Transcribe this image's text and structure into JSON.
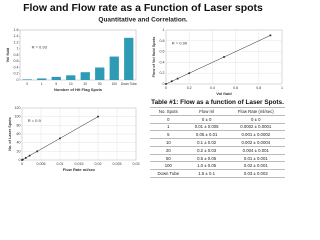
{
  "title": "Flow and Flow rate as a Function of Laser spots",
  "subtitle": "Quantitative and Correlation.",
  "chart_data": [
    {
      "type": "bar",
      "x_label": "Number of Hit Flag Spots",
      "y_label": "Vol fluid",
      "annotation": "R = 0.93",
      "color": "#2e9bb5",
      "categories": [
        "0",
        "1",
        "5",
        "10",
        "20",
        "50",
        "100",
        "Down Tube"
      ],
      "values": [
        0.02,
        0.05,
        0.1,
        0.15,
        0.25,
        0.4,
        0.75,
        1.35
      ],
      "ylim": [
        0,
        1.6
      ],
      "yticks": [
        0,
        0.2,
        0.4,
        0.6,
        0.8,
        1,
        1.2,
        1.4,
        1.6
      ],
      "grid": false
    },
    {
      "type": "scatter",
      "x_label": "Vol fluid",
      "y_label": "Flow of Vol fluid Spots",
      "annotation": "R = 0.99",
      "color": "#333333",
      "line": true,
      "x": [
        0,
        0.05,
        0.1,
        0.2,
        0.5,
        0.9
      ],
      "values": [
        0,
        0.05,
        0.1,
        0.2,
        0.5,
        0.9
      ],
      "xlim": [
        0,
        1
      ],
      "xticks": [
        0,
        0.2,
        0.4,
        0.6,
        0.8,
        1
      ],
      "ylim": [
        0,
        1
      ],
      "yticks": [
        0,
        0.2,
        0.4,
        0.6,
        0.8,
        1
      ],
      "grid": true
    },
    {
      "type": "scatter",
      "x_label": "Flow Rate ml/sec",
      "y_label": "No. of Laser Spots",
      "annotation": "R = 0.9",
      "color": "#333333",
      "line": true,
      "x": [
        0,
        0.0002,
        0.001,
        0.002,
        0.004,
        0.01,
        0.02
      ],
      "values": [
        0,
        1,
        5,
        10,
        20,
        50,
        100
      ],
      "xlim": [
        0,
        0.03
      ],
      "xticks": [
        0,
        0.005,
        0.01,
        0.015,
        0.02,
        0.025,
        0.03
      ],
      "ylim": [
        0,
        120
      ],
      "yticks": [
        0,
        20,
        40,
        60,
        80,
        100,
        120
      ],
      "grid": true
    }
  ],
  "table": {
    "caption": "Table #1: Flow as a function of Laser Spots.",
    "header": [
      "No. Spots",
      "Flow ml",
      "Flow Rate (ml/sec)"
    ],
    "rows": [
      [
        "0",
        "0 ± 0",
        "0 ± 0"
      ],
      [
        "1",
        "0.01 ± 0.005",
        "0.0002 ± 0.0001"
      ],
      [
        "5",
        "0.05 ± 0.01",
        "0.001 ± 0.0002"
      ],
      [
        "10",
        "0.1 ± 0.02",
        "0.002 ± 0.0004"
      ],
      [
        "20",
        "0.2 ± 0.03",
        "0.004 ± 0.001"
      ],
      [
        "50",
        "0.5 ± 0.05",
        "0.01 ± 0.001"
      ],
      [
        "100",
        "1.0 ± 0.05",
        "0.02 ± 0.001"
      ],
      [
        "Down Tube",
        "1.5 ± 0.1",
        "0.03 ± 0.002"
      ]
    ]
  }
}
